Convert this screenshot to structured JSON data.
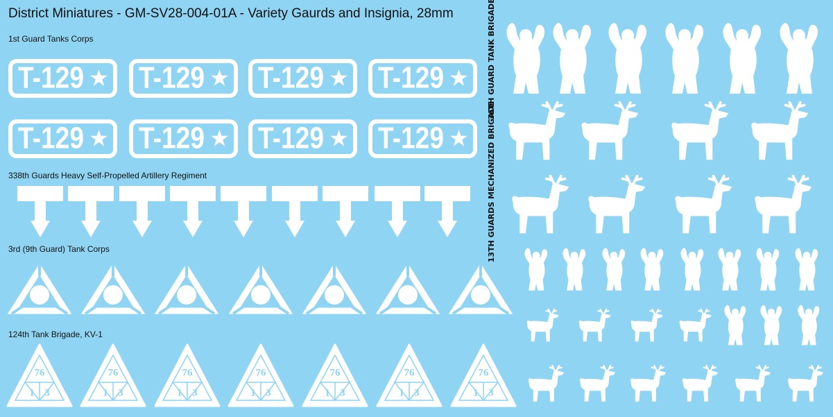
{
  "header": {
    "title": "District Miniatures - GM-SV28-004-01A - Variety Gaurds and Insignia, 28mm"
  },
  "sections": [
    {
      "label": "1st Guard Tanks Corps",
      "plates": [
        "T-129",
        "T-129",
        "T-129",
        "T-129",
        "T-129",
        "T-129",
        "T-129",
        "T-129"
      ]
    },
    {
      "label": "338th Guards Heavy Self-Propelled Artillery Regiment"
    },
    {
      "label": "3rd (9th Guard) Tank Corps"
    },
    {
      "label": "124th Tank Brigade, KV-1",
      "triangles": [
        {
          "top": "76",
          "left": "1",
          "right": "3"
        },
        {
          "top": "76",
          "left": "1",
          "right": "3"
        },
        {
          "top": "76",
          "left": "1",
          "right": "3"
        },
        {
          "top": "76",
          "left": "1",
          "right": "3"
        },
        {
          "top": "76",
          "left": "1",
          "right": "3"
        },
        {
          "top": "76",
          "left": "1",
          "right": "3"
        },
        {
          "top": "76",
          "left": "1",
          "right": "3"
        }
      ]
    }
  ],
  "side_labels": [
    "36TH GUARD TANK BRIGADE",
    "13TH GUARDS MECHANIZED BRIGADE"
  ]
}
